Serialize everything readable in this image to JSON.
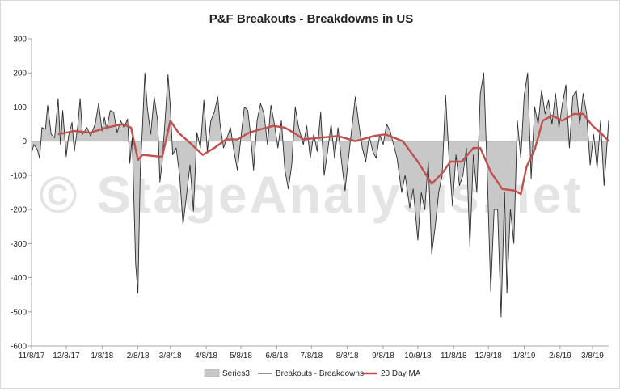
{
  "chart_data": {
    "type": "area",
    "title": "P&F Breakouts - Breakdowns in US",
    "xlabel": "",
    "ylabel": "",
    "ylim": [
      -600,
      300
    ],
    "yticks": [
      300,
      200,
      100,
      0,
      -100,
      -200,
      -300,
      -400,
      -500,
      -600
    ],
    "xlim": [
      "2017-11-08",
      "2019-03-22"
    ],
    "xticks": [
      "11/8/17",
      "12/8/17",
      "1/8/18",
      "2/8/18",
      "3/8/18",
      "4/8/18",
      "5/8/18",
      "6/8/18",
      "7/8/18",
      "8/8/18",
      "9/8/18",
      "10/8/18",
      "11/8/18",
      "12/8/18",
      "1/8/19",
      "2/8/19",
      "3/8/19"
    ],
    "grid": false,
    "legend_position": "bottom",
    "watermark": "© StageAnalysis.net",
    "colors": {
      "area": "#c8c8c8",
      "line": "#2b2b2b",
      "ma": "#c0504d"
    },
    "series": [
      {
        "name": "Series3",
        "kind": "area",
        "points": [
          [
            "2017-11-08",
            -35
          ],
          [
            "2017-11-10",
            -10
          ],
          [
            "2017-11-13",
            -25
          ],
          [
            "2017-11-15",
            -50
          ],
          [
            "2017-11-17",
            40
          ],
          [
            "2017-11-20",
            35
          ],
          [
            "2017-11-22",
            105
          ],
          [
            "2017-11-25",
            20
          ],
          [
            "2017-11-28",
            10
          ],
          [
            "2017-12-01",
            125
          ],
          [
            "2017-12-03",
            -10
          ],
          [
            "2017-12-05",
            90
          ],
          [
            "2017-12-08",
            -45
          ],
          [
            "2017-12-10",
            15
          ],
          [
            "2017-12-13",
            55
          ],
          [
            "2017-12-15",
            -30
          ],
          [
            "2017-12-18",
            45
          ],
          [
            "2017-12-20",
            125
          ],
          [
            "2017-12-22",
            20
          ],
          [
            "2017-12-26",
            40
          ],
          [
            "2017-12-29",
            15
          ],
          [
            "2018-01-02",
            50
          ],
          [
            "2018-01-05",
            110
          ],
          [
            "2018-01-08",
            30
          ],
          [
            "2018-01-10",
            70
          ],
          [
            "2018-01-12",
            35
          ],
          [
            "2018-01-15",
            90
          ],
          [
            "2018-01-18",
            85
          ],
          [
            "2018-01-21",
            25
          ],
          [
            "2018-01-24",
            60
          ],
          [
            "2018-01-27",
            40
          ],
          [
            "2018-01-30",
            65
          ],
          [
            "2018-02-01",
            -65
          ],
          [
            "2018-02-03",
            10
          ],
          [
            "2018-02-06",
            -360
          ],
          [
            "2018-02-08",
            -445
          ],
          [
            "2018-02-10",
            -90
          ],
          [
            "2018-02-12",
            50
          ],
          [
            "2018-02-14",
            200
          ],
          [
            "2018-02-16",
            100
          ],
          [
            "2018-02-19",
            20
          ],
          [
            "2018-02-22",
            130
          ],
          [
            "2018-02-25",
            60
          ],
          [
            "2018-02-27",
            -120
          ],
          [
            "2018-03-01",
            -60
          ],
          [
            "2018-03-04",
            90
          ],
          [
            "2018-03-06",
            195
          ],
          [
            "2018-03-08",
            100
          ],
          [
            "2018-03-10",
            -40
          ],
          [
            "2018-03-13",
            -20
          ],
          [
            "2018-03-16",
            -100
          ],
          [
            "2018-03-19",
            -245
          ],
          [
            "2018-03-22",
            -160
          ],
          [
            "2018-03-25",
            -70
          ],
          [
            "2018-03-28",
            -205
          ],
          [
            "2018-03-31",
            25
          ],
          [
            "2018-04-03",
            -20
          ],
          [
            "2018-04-06",
            120
          ],
          [
            "2018-04-09",
            -30
          ],
          [
            "2018-04-12",
            60
          ],
          [
            "2018-04-15",
            85
          ],
          [
            "2018-04-18",
            130
          ],
          [
            "2018-04-20",
            50
          ],
          [
            "2018-04-23",
            -20
          ],
          [
            "2018-04-26",
            10
          ],
          [
            "2018-04-29",
            40
          ],
          [
            "2018-05-02",
            -30
          ],
          [
            "2018-05-05",
            -85
          ],
          [
            "2018-05-08",
            10
          ],
          [
            "2018-05-11",
            100
          ],
          [
            "2018-05-14",
            90
          ],
          [
            "2018-05-16",
            30
          ],
          [
            "2018-05-19",
            -85
          ],
          [
            "2018-05-22",
            60
          ],
          [
            "2018-05-25",
            110
          ],
          [
            "2018-05-28",
            80
          ],
          [
            "2018-05-31",
            -10
          ],
          [
            "2018-06-03",
            105
          ],
          [
            "2018-06-06",
            50
          ],
          [
            "2018-06-09",
            -20
          ],
          [
            "2018-06-12",
            60
          ],
          [
            "2018-06-15",
            -85
          ],
          [
            "2018-06-18",
            -140
          ],
          [
            "2018-06-21",
            -70
          ],
          [
            "2018-06-24",
            100
          ],
          [
            "2018-06-27",
            40
          ],
          [
            "2018-07-01",
            -10
          ],
          [
            "2018-07-04",
            45
          ],
          [
            "2018-07-07",
            -50
          ],
          [
            "2018-07-10",
            20
          ],
          [
            "2018-07-13",
            -30
          ],
          [
            "2018-07-16",
            85
          ],
          [
            "2018-07-19",
            -100
          ],
          [
            "2018-07-22",
            -30
          ],
          [
            "2018-07-25",
            50
          ],
          [
            "2018-07-28",
            -50
          ],
          [
            "2018-07-31",
            40
          ],
          [
            "2018-08-03",
            -60
          ],
          [
            "2018-08-06",
            -145
          ],
          [
            "2018-08-09",
            -50
          ],
          [
            "2018-08-12",
            40
          ],
          [
            "2018-08-15",
            130
          ],
          [
            "2018-08-18",
            50
          ],
          [
            "2018-08-21",
            -20
          ],
          [
            "2018-08-24",
            -60
          ],
          [
            "2018-08-27",
            15
          ],
          [
            "2018-08-30",
            -30
          ],
          [
            "2018-09-02",
            -50
          ],
          [
            "2018-09-05",
            20
          ],
          [
            "2018-09-08",
            -10
          ],
          [
            "2018-09-11",
            50
          ],
          [
            "2018-09-14",
            30
          ],
          [
            "2018-09-17",
            -10
          ],
          [
            "2018-09-20",
            -50
          ],
          [
            "2018-09-24",
            -150
          ],
          [
            "2018-09-27",
            -100
          ],
          [
            "2018-10-01",
            -195
          ],
          [
            "2018-10-04",
            -140
          ],
          [
            "2018-10-08",
            -290
          ],
          [
            "2018-10-11",
            -150
          ],
          [
            "2018-10-14",
            -200
          ],
          [
            "2018-10-17",
            -60
          ],
          [
            "2018-10-20",
            -330
          ],
          [
            "2018-10-23",
            -250
          ],
          [
            "2018-10-26",
            -150
          ],
          [
            "2018-10-29",
            -100
          ],
          [
            "2018-11-01",
            135
          ],
          [
            "2018-11-04",
            -50
          ],
          [
            "2018-11-07",
            -190
          ],
          [
            "2018-11-10",
            -40
          ],
          [
            "2018-11-13",
            -130
          ],
          [
            "2018-11-16",
            -100
          ],
          [
            "2018-11-19",
            -20
          ],
          [
            "2018-11-22",
            -310
          ],
          [
            "2018-11-25",
            -40
          ],
          [
            "2018-11-28",
            -150
          ],
          [
            "2018-12-01",
            140
          ],
          [
            "2018-12-04",
            200
          ],
          [
            "2018-12-07",
            -100
          ],
          [
            "2018-12-10",
            -440
          ],
          [
            "2018-12-13",
            -200
          ],
          [
            "2018-12-16",
            -200
          ],
          [
            "2018-12-19",
            -515
          ],
          [
            "2018-12-22",
            -150
          ],
          [
            "2018-12-24",
            -445
          ],
          [
            "2018-12-27",
            -200
          ],
          [
            "2018-12-30",
            -300
          ],
          [
            "2019-01-02",
            60
          ],
          [
            "2019-01-05",
            -50
          ],
          [
            "2019-01-08",
            135
          ],
          [
            "2019-01-11",
            200
          ],
          [
            "2019-01-14",
            -110
          ],
          [
            "2019-01-17",
            100
          ],
          [
            "2019-01-20",
            50
          ],
          [
            "2019-01-23",
            150
          ],
          [
            "2019-01-26",
            80
          ],
          [
            "2019-01-29",
            120
          ],
          [
            "2019-02-01",
            50
          ],
          [
            "2019-02-04",
            140
          ],
          [
            "2019-02-07",
            40
          ],
          [
            "2019-02-10",
            110
          ],
          [
            "2019-02-13",
            165
          ],
          [
            "2019-02-16",
            -20
          ],
          [
            "2019-02-19",
            130
          ],
          [
            "2019-02-22",
            150
          ],
          [
            "2019-02-25",
            50
          ],
          [
            "2019-02-28",
            140
          ],
          [
            "2019-03-03",
            80
          ],
          [
            "2019-03-06",
            -70
          ],
          [
            "2019-03-09",
            20
          ],
          [
            "2019-03-12",
            -80
          ],
          [
            "2019-03-15",
            60
          ],
          [
            "2019-03-18",
            -130
          ],
          [
            "2019-03-20",
            -40
          ],
          [
            "2019-03-22",
            60
          ]
        ]
      },
      {
        "name": "Breakouts - Breakdowns",
        "kind": "line",
        "source": "Series3"
      },
      {
        "name": "20 Day MA",
        "kind": "line",
        "points": [
          [
            "2017-12-01",
            20
          ],
          [
            "2017-12-15",
            30
          ],
          [
            "2017-12-29",
            25
          ],
          [
            "2018-01-12",
            40
          ],
          [
            "2018-01-26",
            50
          ],
          [
            "2018-02-02",
            40
          ],
          [
            "2018-02-08",
            -55
          ],
          [
            "2018-02-12",
            -40
          ],
          [
            "2018-02-26",
            -45
          ],
          [
            "2018-03-01",
            -45
          ],
          [
            "2018-03-08",
            60
          ],
          [
            "2018-03-15",
            25
          ],
          [
            "2018-03-25",
            -5
          ],
          [
            "2018-04-05",
            -40
          ],
          [
            "2018-04-15",
            -20
          ],
          [
            "2018-04-25",
            5
          ],
          [
            "2018-05-05",
            5
          ],
          [
            "2018-05-15",
            25
          ],
          [
            "2018-05-25",
            35
          ],
          [
            "2018-06-05",
            45
          ],
          [
            "2018-06-15",
            40
          ],
          [
            "2018-06-25",
            20
          ],
          [
            "2018-07-01",
            5
          ],
          [
            "2018-07-15",
            10
          ],
          [
            "2018-07-31",
            15
          ],
          [
            "2018-08-15",
            0
          ],
          [
            "2018-08-31",
            15
          ],
          [
            "2018-09-10",
            20
          ],
          [
            "2018-09-25",
            0
          ],
          [
            "2018-10-08",
            -60
          ],
          [
            "2018-10-20",
            -125
          ],
          [
            "2018-10-30",
            -90
          ],
          [
            "2018-11-05",
            -60
          ],
          [
            "2018-11-15",
            -60
          ],
          [
            "2018-11-25",
            -20
          ],
          [
            "2018-12-01",
            -20
          ],
          [
            "2018-12-10",
            -90
          ],
          [
            "2018-12-20",
            -140
          ],
          [
            "2018-12-31",
            -145
          ],
          [
            "2019-01-05",
            -155
          ],
          [
            "2019-01-10",
            -75
          ],
          [
            "2019-01-17",
            -25
          ],
          [
            "2019-01-24",
            60
          ],
          [
            "2019-02-01",
            75
          ],
          [
            "2019-02-10",
            60
          ],
          [
            "2019-02-20",
            80
          ],
          [
            "2019-02-28",
            80
          ],
          [
            "2019-03-08",
            45
          ],
          [
            "2019-03-15",
            25
          ],
          [
            "2019-03-22",
            0
          ]
        ]
      }
    ]
  }
}
